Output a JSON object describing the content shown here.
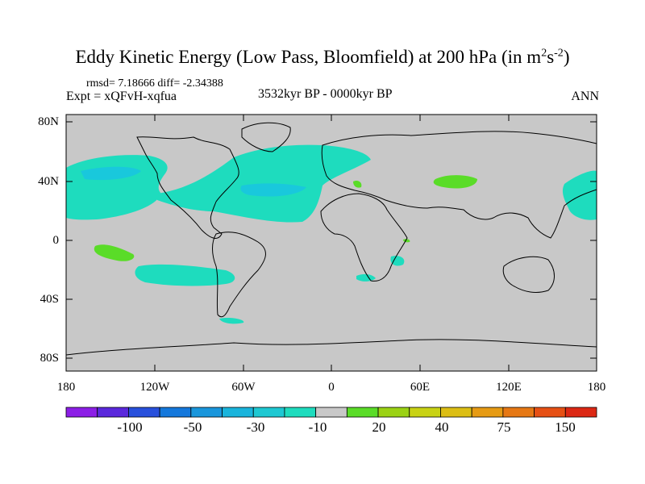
{
  "header": {
    "title_main": "Eddy Kinetic Energy (Low Pass, Bloomfield) at 200 hPa (in m",
    "title_sup1": "2",
    "title_s": "s",
    "title_sup2": "-2",
    "title_end": ")",
    "rmsd_text": "rmsd= 7.18666 diff= -2.34388",
    "expt_text": "Expt = xQFvH-xqfua",
    "period_text": "3532kyr BP - 0000kyr BP",
    "season_text": "ANN"
  },
  "axes": {
    "lat_labels": [
      "80N",
      "40N",
      "0",
      "40S",
      "80S"
    ],
    "lon_labels": [
      "180",
      "120W",
      "60W",
      "0",
      "60E",
      "120E",
      "180"
    ]
  },
  "colorbar": {
    "labels": [
      "-100",
      "-50",
      "-30",
      "-10",
      "20",
      "40",
      "75",
      "150"
    ],
    "colors": [
      "#8c1ee6",
      "#5a28dc",
      "#2850dc",
      "#1478dc",
      "#1996dc",
      "#19b4dc",
      "#1ec8d2",
      "#1edcbe",
      "#c8c8c8",
      "#5adc28",
      "#9bd214",
      "#c8d214",
      "#dcbe14",
      "#e69b14",
      "#e67814",
      "#e65014",
      "#dc2814"
    ]
  },
  "chart_data": {
    "type": "map",
    "title": "Eddy Kinetic Energy (Low Pass, Bloomfield) at 200 hPa (in m^2 s^-2)",
    "subtitle": "3532kyr BP - 0000kyr BP",
    "projection": "cylindrical equidistant",
    "lon_range": [
      -180,
      180
    ],
    "lat_range": [
      -90,
      90
    ],
    "contour_levels": [
      -150,
      -100,
      -75,
      -50,
      -40,
      -30,
      -20,
      -10,
      10,
      20,
      30,
      40,
      50,
      75,
      100,
      150
    ],
    "stats": {
      "rmsd": 7.18666,
      "diff": -2.34388
    },
    "season": "ANN"
  }
}
